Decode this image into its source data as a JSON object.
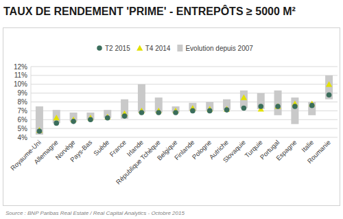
{
  "chart_data": {
    "type": "dot",
    "title": "TAUX DE RENDEMENT 'PRIME' - ENTREPÔTS ≥ 5000 M²",
    "source": "Source : BNP Paribas Real Estate / Real Capital Analytics - Octobre 2015",
    "categories": [
      "Royaume-Uni",
      "Allemagne",
      "Norvège",
      "Pays-Bas",
      "Suède",
      "France",
      "Irlande",
      "République Tchèque",
      "Belgique",
      "Finlande",
      "Pologne",
      "Autriche",
      "Slovaquie",
      "Turquie",
      "Portugal",
      "Espagne",
      "Italie",
      "Roumanie"
    ],
    "series": [
      {
        "name": "T2 2015",
        "type": "scatter",
        "marker": "circle",
        "color": "#3b6e5c",
        "values": [
          4.7,
          5.6,
          5.8,
          6.0,
          6.2,
          6.4,
          6.8,
          6.8,
          6.8,
          7.0,
          7.0,
          7.1,
          7.3,
          7.5,
          7.5,
          7.5,
          7.6,
          8.8
        ]
      },
      {
        "name": "T4 2014",
        "type": "scatter",
        "marker": "triangle",
        "color": "#e2e000",
        "values": [
          4.8,
          6.2,
          6.0,
          6.2,
          6.3,
          6.7,
          7.0,
          7.0,
          7.0,
          7.3,
          7.2,
          7.2,
          8.5,
          7.2,
          7.5,
          7.8,
          7.8,
          10.0
        ]
      },
      {
        "name": "Evolution depuis 2007",
        "type": "range",
        "color": "#c9c9c9",
        "low": [
          4.3,
          5.6,
          5.8,
          6.0,
          6.2,
          6.1,
          6.8,
          6.8,
          6.8,
          7.0,
          7.0,
          7.1,
          7.3,
          7.2,
          6.5,
          5.5,
          6.5,
          8.3
        ],
        "high": [
          7.5,
          7.1,
          6.8,
          6.8,
          7.1,
          8.3,
          10.0,
          8.5,
          7.5,
          7.9,
          8.0,
          8.3,
          9.3,
          9.0,
          9.3,
          8.5,
          8.0,
          11.0
        ]
      }
    ],
    "ylim": [
      4,
      12
    ],
    "yticks": [
      {
        "value": 4,
        "label": "4%"
      },
      {
        "value": 5,
        "label": "5%"
      },
      {
        "value": 6,
        "label": "6%"
      },
      {
        "value": 7,
        "label": "7%"
      },
      {
        "value": 8,
        "label": "8%"
      },
      {
        "value": 9,
        "label": "9%"
      },
      {
        "value": 10,
        "label": "10%"
      },
      {
        "value": 11,
        "label": "11%"
      },
      {
        "value": 12,
        "label": "12%"
      }
    ],
    "grid": true,
    "legend": "top"
  }
}
